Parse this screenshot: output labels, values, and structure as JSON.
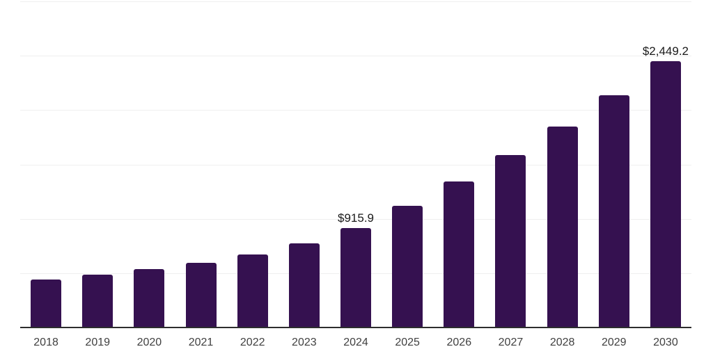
{
  "chart_data": {
    "type": "bar",
    "categories": [
      "2018",
      "2019",
      "2020",
      "2021",
      "2022",
      "2023",
      "2024",
      "2025",
      "2026",
      "2027",
      "2028",
      "2029",
      "2030"
    ],
    "values": [
      443,
      486,
      535,
      597,
      671,
      774,
      915.9,
      1119,
      1345,
      1584,
      1850,
      2134,
      2449.2
    ],
    "data_labels": {
      "2024": "$915.9",
      "2030": "$2,449.2"
    },
    "title": "",
    "xlabel": "",
    "ylabel": "",
    "ylim": [
      0,
      3000
    ],
    "gridline_step": 500,
    "grid": "horizontal-only",
    "legend": "none",
    "y_axis_tick_labels_visible": false,
    "colors": {
      "bar": "#351150",
      "axis_line": "#2d2d2d",
      "gridline": "#efefef",
      "tick_label": "#404040",
      "data_label": "#1a1a1a",
      "background": "#ffffff"
    }
  }
}
